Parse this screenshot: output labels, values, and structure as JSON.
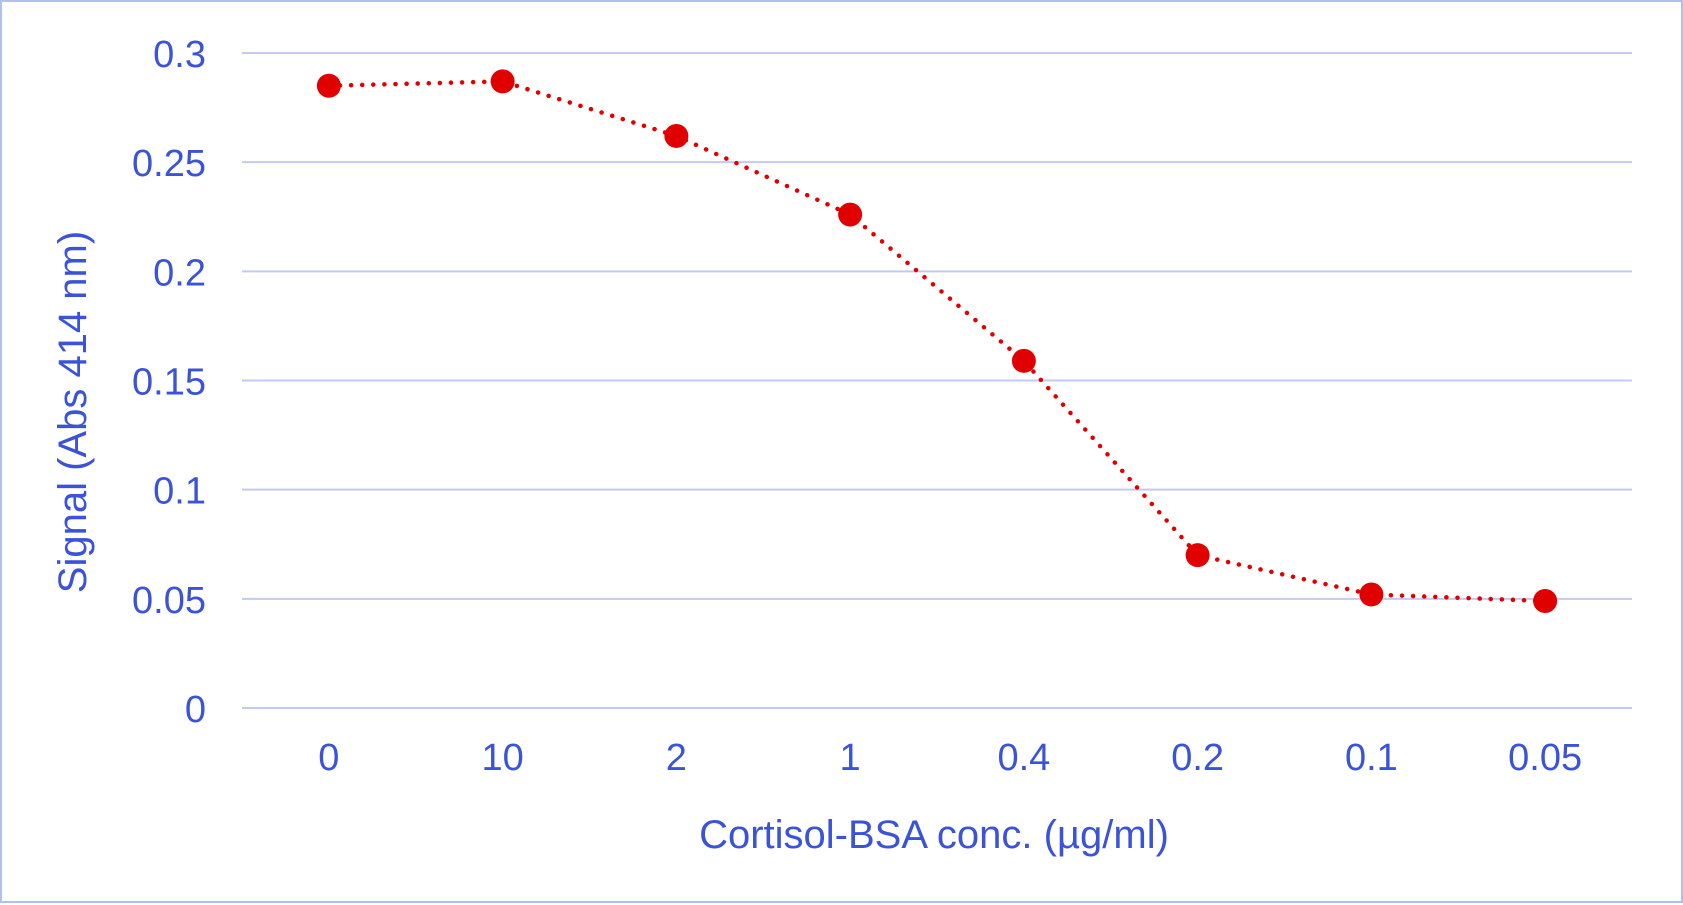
{
  "chart_data": {
    "type": "line",
    "title": "",
    "xlabel": "Cortisol-BSA conc. (µg/ml)",
    "ylabel": "Signal (Abs 414 nm)",
    "categories": [
      "0",
      "10",
      "2",
      "1",
      "0.4",
      "0.2",
      "0.1",
      "0.05"
    ],
    "series": [
      {
        "values": [
          0.285,
          0.287,
          0.262,
          0.226,
          0.159,
          0.07,
          0.052,
          0.049
        ],
        "color": "#e00000",
        "line_style": "dotted",
        "marker": "circle"
      }
    ],
    "ylim": [
      0,
      0.3
    ],
    "yticks": [
      "0",
      "0.05",
      "0.1",
      "0.15",
      "0.2",
      "0.25",
      "0.3"
    ],
    "grid": "horizontal",
    "colors": {
      "text": "#3b53d8",
      "grid": "#c3c9f2",
      "border": "#b4bff0"
    }
  }
}
